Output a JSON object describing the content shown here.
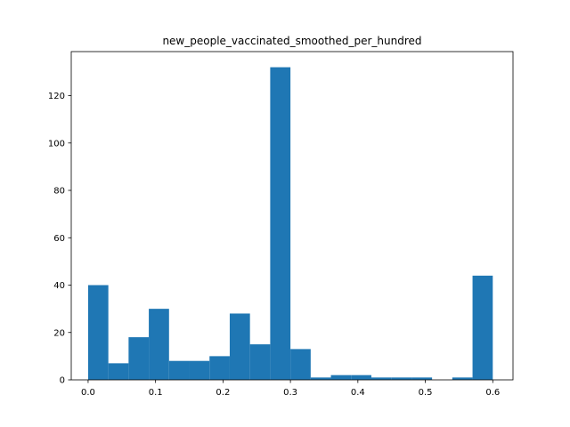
{
  "chart_data": {
    "type": "bar",
    "title": "new_people_vaccinated_smoothed_per_hundred",
    "xlabel": "",
    "ylabel": "",
    "xlim": [
      -0.025,
      0.63
    ],
    "ylim": [
      0,
      138.6
    ],
    "x_ticks": [
      "0.0",
      "0.1",
      "0.2",
      "0.3",
      "0.4",
      "0.5",
      "0.6"
    ],
    "y_ticks": [
      "0",
      "20",
      "40",
      "60",
      "80",
      "100",
      "120"
    ],
    "bin_edges": [
      0.0,
      0.03,
      0.06,
      0.09,
      0.12,
      0.15,
      0.18,
      0.21,
      0.24,
      0.27,
      0.3,
      0.33,
      0.36,
      0.39,
      0.42,
      0.45,
      0.48,
      0.51,
      0.54,
      0.57,
      0.6
    ],
    "values": [
      40,
      7,
      18,
      30,
      8,
      8,
      10,
      28,
      15,
      132,
      13,
      1,
      2,
      2,
      1,
      1,
      1,
      0,
      1,
      44
    ],
    "bar_color": "#1f77b4",
    "grid": false
  }
}
